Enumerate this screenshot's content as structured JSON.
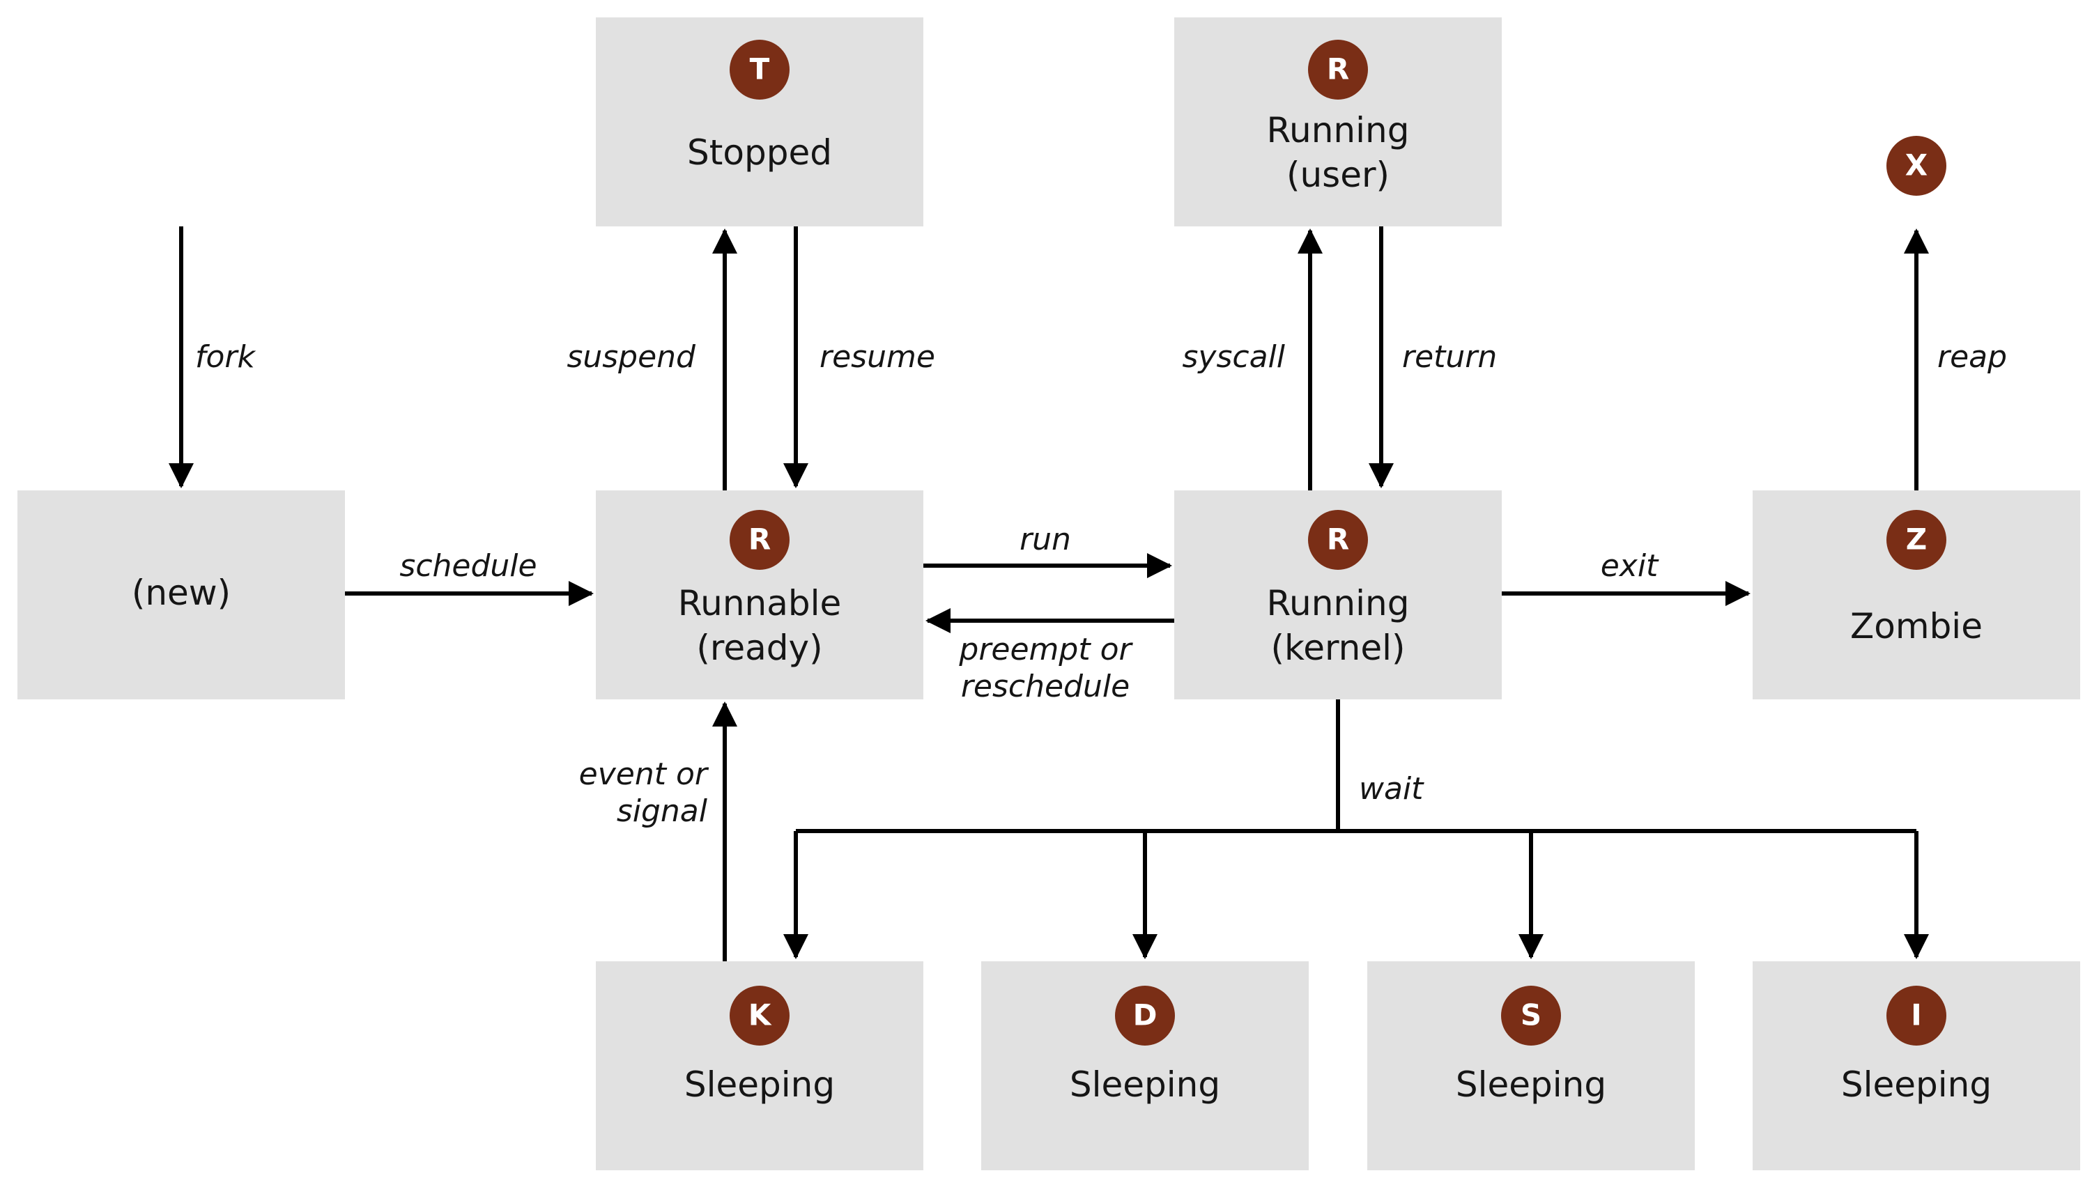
{
  "diagram": {
    "colors": {
      "box_fill": "#e1e1e1",
      "badge_fill": "#7a2e16",
      "badge_text": "#ffffff",
      "text": "#151515",
      "arrow": "#000000"
    },
    "states": {
      "new": {
        "lines": [
          "(new)"
        ]
      },
      "runnable": {
        "badge": "R",
        "lines": [
          "Runnable",
          "(ready)"
        ]
      },
      "stopped": {
        "badge": "T",
        "lines": [
          "Stopped"
        ]
      },
      "running_user": {
        "badge": "R",
        "lines": [
          "Running",
          "(user)"
        ]
      },
      "running_kernel": {
        "badge": "R",
        "lines": [
          "Running",
          "(kernel)"
        ]
      },
      "zombie": {
        "badge": "Z",
        "lines": [
          "Zombie"
        ]
      },
      "dead": {
        "badge": "X"
      },
      "sleeping_k": {
        "badge": "K",
        "lines": [
          "Sleeping"
        ]
      },
      "sleeping_d": {
        "badge": "D",
        "lines": [
          "Sleeping"
        ]
      },
      "sleeping_s": {
        "badge": "S",
        "lines": [
          "Sleeping"
        ]
      },
      "sleeping_i": {
        "badge": "I",
        "lines": [
          "Sleeping"
        ]
      }
    },
    "transitions": {
      "fork": [
        "fork"
      ],
      "schedule": [
        "schedule"
      ],
      "suspend": [
        "suspend"
      ],
      "resume": [
        "resume"
      ],
      "run": [
        "run"
      ],
      "preempt": [
        "preempt or",
        "reschedule"
      ],
      "syscall": [
        "syscall"
      ],
      "return": [
        "return"
      ],
      "exit": [
        "exit"
      ],
      "reap": [
        "reap"
      ],
      "wait": [
        "wait"
      ],
      "event": [
        "event or",
        "signal"
      ]
    }
  }
}
